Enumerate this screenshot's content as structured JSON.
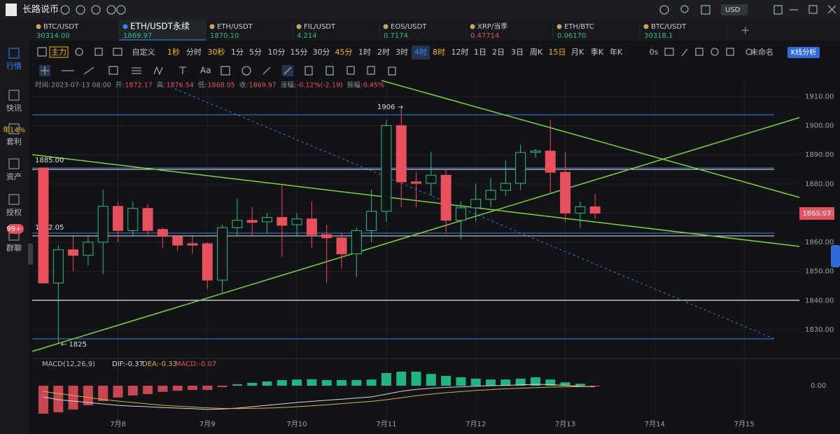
{
  "app": {
    "name": "长路说币",
    "currency": "USD"
  },
  "sidebar": [
    {
      "label": "行情"
    },
    {
      "label": "快讯"
    },
    {
      "badge": "年14%",
      "label": "套利"
    },
    {
      "label": "资产"
    },
    {
      "label": "授权"
    },
    {
      "badge": "99+",
      "label": "群聊"
    }
  ],
  "tabs": [
    {
      "name": "BTC/USDT",
      "price": "30314.00",
      "color": "#2ebd85"
    },
    {
      "name": "ETH/USDT永续",
      "price": "1869.97",
      "color": "#2ebd85",
      "active": true
    },
    {
      "name": "ETH/USDT",
      "price": "1870.10",
      "color": "#2ebd85"
    },
    {
      "name": "FIL/USDT",
      "price": "4.214",
      "color": "#2ebd85"
    },
    {
      "name": "EOS/USDT",
      "price": "0.7174",
      "color": "#2ebd85"
    },
    {
      "name": "XRP/当季",
      "price": "0.47714",
      "color": "#e8505b"
    },
    {
      "name": "ETH/BTC",
      "price": "0.06170",
      "color": "#2ebd85"
    },
    {
      "name": "BTC/USDT",
      "price": "30318.1",
      "color": "#2ebd85"
    }
  ],
  "periods": [
    {
      "label": "主力",
      "color": "#f0b90b"
    },
    {
      "label": "自定义"
    },
    {
      "label": "1秒",
      "color": "#f0b90b"
    },
    {
      "label": "分时"
    },
    {
      "label": "30秒",
      "color": "#f0b90b"
    },
    {
      "label": "1分"
    },
    {
      "label": "5分"
    },
    {
      "label": "10分"
    },
    {
      "label": "15分"
    },
    {
      "label": "30分"
    },
    {
      "label": "45分",
      "color": "#f0b90b"
    },
    {
      "label": "1时"
    },
    {
      "label": "2时"
    },
    {
      "label": "3时"
    },
    {
      "label": "4时",
      "active": true
    },
    {
      "label": "8时",
      "color": "#f0b90b"
    },
    {
      "label": "12时"
    },
    {
      "label": "1日"
    },
    {
      "label": "2日"
    },
    {
      "label": "3日"
    },
    {
      "label": "周K"
    },
    {
      "label": "15日",
      "color": "#f0b90b"
    },
    {
      "label": "月K"
    },
    {
      "label": "季K"
    },
    {
      "label": "年K"
    }
  ],
  "toolbar": {
    "timer": "0s",
    "layout": "未命名",
    "analysis": "K线分析",
    "text_tool": "Aa"
  },
  "chart": {
    "type": "candlestick",
    "info": [
      {
        "label": "时间:",
        "value": "2023-07-13 08:00"
      },
      {
        "label": "开:",
        "value": "1872.17"
      },
      {
        "label": "高:",
        "value": "1876.54"
      },
      {
        "label": "低:",
        "value": "1868.05"
      },
      {
        "label": "收:",
        "value": "1869.97"
      },
      {
        "label": "涨幅:",
        "value": "-0.12%(-2.19)"
      },
      {
        "label": "振幅:",
        "value": "0.45%"
      }
    ],
    "annotations": {
      "high": "1906 →",
      "low": "← 1825",
      "level_a": "1885.00",
      "level_b": "1862.05"
    },
    "last_price": "1869.97",
    "ylim": [
      1820.6,
      1915.5
    ],
    "yticks": [
      {
        "value": 1830,
        "label": "1830.00"
      },
      {
        "value": 1840,
        "label": "1840.00"
      },
      {
        "value": 1850,
        "label": "1850.00"
      },
      {
        "value": 1860,
        "label": "1860.00"
      },
      {
        "value": 1870,
        "label": "1870.00"
      },
      {
        "value": 1880,
        "label": "1880.00"
      },
      {
        "value": 1890,
        "label": "1890.00"
      },
      {
        "value": 1900,
        "label": "1900.00"
      },
      {
        "value": 1910,
        "label": "1910.00"
      }
    ],
    "xlim": [
      -0.75,
      50.7
    ],
    "xticks": [
      {
        "value": 5,
        "label": "7月8"
      },
      {
        "value": 11,
        "label": "7月9"
      },
      {
        "value": 17,
        "label": "7月10"
      },
      {
        "value": 23,
        "label": "7月11"
      },
      {
        "value": 29,
        "label": "7月12"
      },
      {
        "value": 35,
        "label": "7月13"
      },
      {
        "value": 41,
        "label": "7月14"
      },
      {
        "value": 47,
        "label": "7月15"
      }
    ],
    "up_color": "#2ebd85",
    "down_color": "#e8505b",
    "open": [
      1885.5,
      1846,
      1857.4,
      1855.5,
      1860,
      1872.3,
      1864,
      1871.6,
      1864.4,
      1862,
      1859.5,
      1859.5,
      1847,
      1865,
      1867.5,
      1867,
      1868.5,
      1866,
      1868,
      1862.6,
      1861.5,
      1856,
      1864,
      1870.6,
      1900,
      1880.7,
      1880.2,
      1883,
      1867.5,
      1871.8,
      1874.7,
      1877.8,
      1880.2,
      1890.8,
      1891.3,
      1884,
      1870,
      1872.17
    ],
    "high": [
      1885.5,
      1859,
      1862,
      1862,
      1878,
      1874,
      1874,
      1873,
      1865,
      1862.5,
      1862,
      1860,
      1866,
      1875,
      1872,
      1870,
      1880,
      1870,
      1874,
      1866,
      1863,
      1865,
      1878,
      1902,
      1906,
      1884,
      1891,
      1885,
      1874,
      1880,
      1882,
      1888,
      1893.5,
      1892,
      1902,
      1891,
      1874,
      1876.54
    ],
    "low": [
      1846,
      1825,
      1850,
      1852,
      1849,
      1860,
      1862,
      1862,
      1858,
      1857,
      1856,
      1844,
      1842.7,
      1862,
      1862,
      1863,
      1855,
      1862,
      1858,
      1846,
      1851,
      1848,
      1860,
      1867,
      1872,
      1872,
      1876,
      1863,
      1861,
      1867,
      1872,
      1876,
      1878,
      1889,
      1877,
      1867,
      1865,
      1868.05
    ],
    "close": [
      1846,
      1857.4,
      1855.5,
      1860,
      1872.3,
      1864,
      1871.6,
      1864,
      1862,
      1859,
      1859,
      1847,
      1865,
      1867.5,
      1866.8,
      1868.5,
      1865.8,
      1868,
      1862.6,
      1861.5,
      1856,
      1864,
      1870.6,
      1900,
      1880.7,
      1880.2,
      1883,
      1867.5,
      1871.8,
      1874.7,
      1877.8,
      1880.2,
      1890.8,
      1891.3,
      1884,
      1870,
      1872.17,
      1869.97
    ]
  },
  "macd": {
    "title": "MACD(12,26,9)",
    "dif_label": "DIF:-0.37",
    "dea_label": "DEA:-0.33",
    "macd_label": "MACD:-0.07",
    "y2lim": [
      -12.25,
      5.75
    ],
    "y2ticks": [
      {
        "value": 0,
        "label": "0.00"
      }
    ],
    "hist": [
      -10,
      -9.5,
      -8.5,
      -7,
      -5.5,
      -4.2,
      -3.5,
      -3,
      -2.2,
      -1.8,
      -1.5,
      -1.5,
      -0.5,
      0.5,
      1,
      1.5,
      2,
      2.2,
      2.3,
      2,
      2,
      2,
      2.2,
      4.5,
      5,
      5,
      4.2,
      3.5,
      3,
      2.5,
      2.2,
      2.2,
      2.5,
      3,
      2.2,
      1.2,
      0.7,
      -0.07
    ],
    "dif": [
      -4,
      -5,
      -5.5,
      -6,
      -6.5,
      -7,
      -7.3,
      -7.5,
      -7.8,
      -8,
      -8.2,
      -8.5,
      -8.3,
      -8,
      -7.5,
      -7,
      -6.5,
      -6,
      -5.6,
      -5.2,
      -4.8,
      -4.4,
      -4,
      -3,
      -2,
      -1.3,
      -0.9,
      -0.6,
      -0.4,
      -0.2,
      0,
      0.1,
      0.3,
      0.5,
      0.4,
      0.1,
      -0.2,
      -0.37
    ],
    "dea": [
      -2,
      -2.8,
      -3.5,
      -4.2,
      -4.9,
      -5.5,
      -6,
      -6.5,
      -7,
      -7.3,
      -7.6,
      -7.9,
      -8.1,
      -8.2,
      -8.1,
      -8,
      -7.8,
      -7.5,
      -7.2,
      -6.8,
      -6.4,
      -6,
      -5.6,
      -5,
      -4.3,
      -3.6,
      -3,
      -2.5,
      -2.1,
      -1.7,
      -1.4,
      -1.1,
      -0.9,
      -0.7,
      -0.5,
      -0.4,
      -0.35,
      -0.33
    ],
    "dif_color": "#d8d8d8",
    "dea_color": "#d9b13a"
  }
}
